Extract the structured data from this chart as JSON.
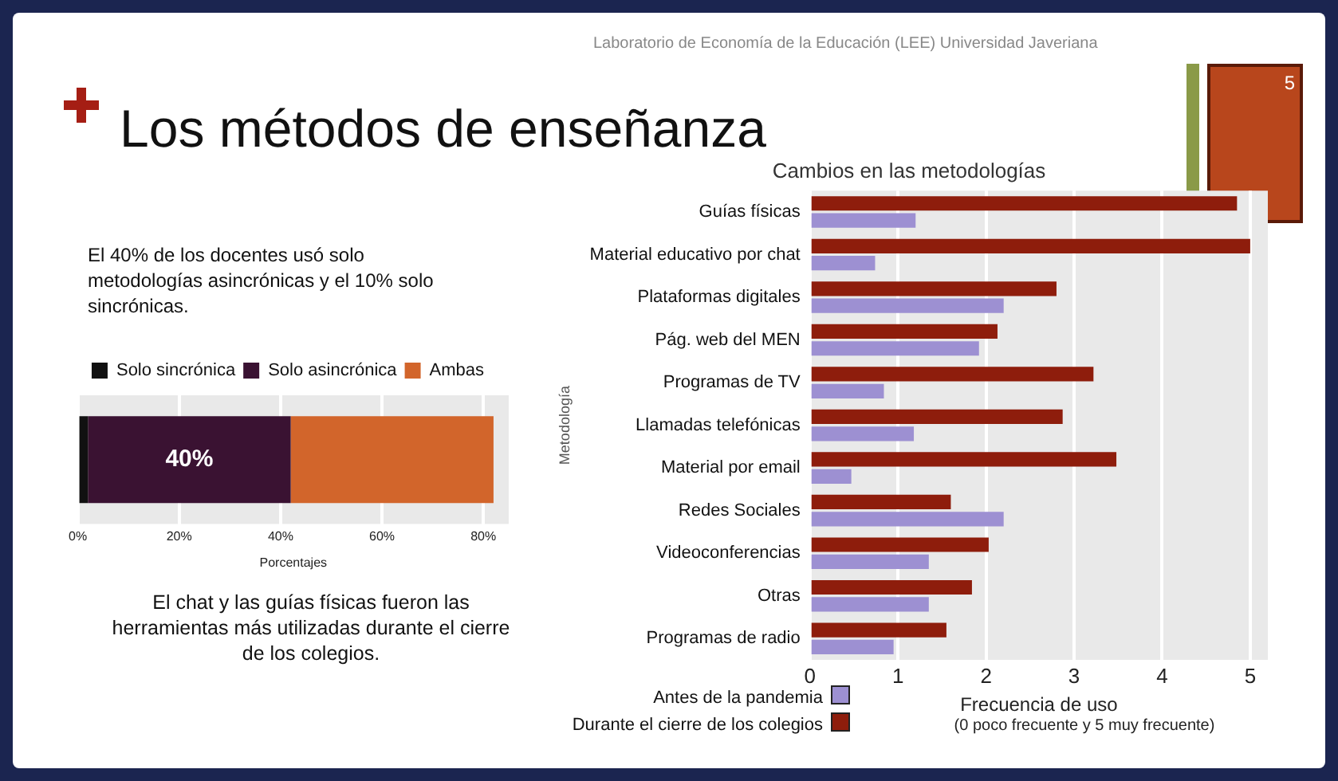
{
  "chart_data": [
    {
      "type": "other",
      "title": "Los métodos de enseñanza",
      "annotations": [
        "Laboratorio de Economía de la Educación (LEE) Universidad Javeriana",
        "5",
        "El 40% de los docentes usó solo metodologías asincrónicas y el 10% solo sincrónicas.",
        "El chat y las guías físicas fueron las herramientas más utilizadas durante el cierre de los colegios."
      ]
    },
    {
      "type": "bar",
      "orientation": "horizontal",
      "stacked": true,
      "categories": [
        null
      ],
      "xlabel": "Porcentajes",
      "xlim": [
        0,
        85
      ],
      "xticks": [
        {
          "value": 0,
          "label": "0%"
        },
        {
          "value": 20,
          "label": "20%"
        },
        {
          "value": 40,
          "label": "40%"
        },
        {
          "value": 60,
          "label": "60%"
        },
        {
          "value": 80,
          "label": "80%"
        }
      ],
      "grid": "x",
      "legend": "top",
      "tick_labels": "x",
      "series": [
        {
          "name": "Solo sincrónica",
          "color": "#111111",
          "values": [
            2
          ]
        },
        {
          "name": "Solo asincrónica",
          "color": "#3a1232",
          "values": [
            40
          ],
          "value_labels": [
            "40%"
          ]
        },
        {
          "name": "Ambas",
          "color": "#d2652b",
          "values": [
            40
          ]
        }
      ]
    },
    {
      "type": "bar",
      "orientation": "horizontal",
      "title": "Cambios en las metodologías",
      "xlabel": "Frecuencia de uso",
      "ylabel": "Metodología",
      "annotations": [
        "(0 poco frecuente y  5 muy frecuente)"
      ],
      "xlim": [
        0,
        5.2
      ],
      "xticks": [
        0,
        1,
        2,
        3,
        4,
        5
      ],
      "grid": "x",
      "legend": "bottom left",
      "categories": [
        "Guías físicas",
        "Material educativo por chat",
        "Plataformas digitales",
        "Pág. web del MEN",
        "Programas de TV",
        "Llamadas telefónicas",
        "Material por email",
        "Redes Sociales",
        "Videoconferencias",
        "Otras",
        "Programas de radio"
      ],
      "series": [
        {
          "name": "Durante el cierre de los colegios",
          "color": "#8e1d0c",
          "values": [
            4.85,
            5.0,
            2.8,
            2.13,
            3.22,
            2.87,
            3.48,
            1.6,
            2.03,
            1.84,
            1.55
          ]
        },
        {
          "name": "Antes de la pandemia",
          "color": "#9d90d2",
          "values": [
            1.2,
            0.74,
            2.2,
            1.92,
            0.84,
            1.18,
            0.47,
            2.2,
            1.35,
            1.35,
            0.95
          ]
        }
      ]
    }
  ]
}
